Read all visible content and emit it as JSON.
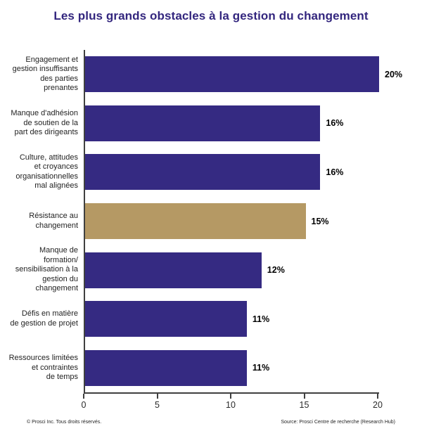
{
  "title": "Les plus grands obstacles à la gestion du changement",
  "colors": {
    "bar_default": "#352a82",
    "bar_highlight": "#b59964",
    "title": "#33267e",
    "axis": "#404040",
    "value_label": "#000000"
  },
  "footer": {
    "left": "© Prosci Inc. Tous droits réservés.",
    "right": "Source: Prosci Centre de recherche (Research Hub)"
  },
  "chart_data": {
    "type": "bar",
    "orientation": "horizontal",
    "title": "Les plus grands obstacles à la gestion du changement",
    "categories": [
      "Engagement et\ngestion insuffisants\ndes parties\nprenantes",
      "Manque d'adhésion\nde soutien de la\npart des dirigeants",
      "Culture, attitudes\net croyances\norganisationnelles\nmal alignées",
      "Résistance au\nchangement",
      "Manque de\nformation/\nsensibilisation à la\ngestion du\nchangement",
      "Défis en matière\nde gestion de projet",
      "Ressources limitées\net contraintes\nde temps"
    ],
    "values": [
      20,
      16,
      16,
      15,
      12,
      11,
      11
    ],
    "value_labels": [
      "20%",
      "16%",
      "16%",
      "15%",
      "12%",
      "11%",
      "11%"
    ],
    "highlight_index": 3,
    "xlabel": "",
    "ylabel": "",
    "xlim": [
      0,
      20
    ],
    "xticks": [
      0,
      5,
      10,
      15,
      20
    ],
    "grid": false,
    "legend": false
  }
}
